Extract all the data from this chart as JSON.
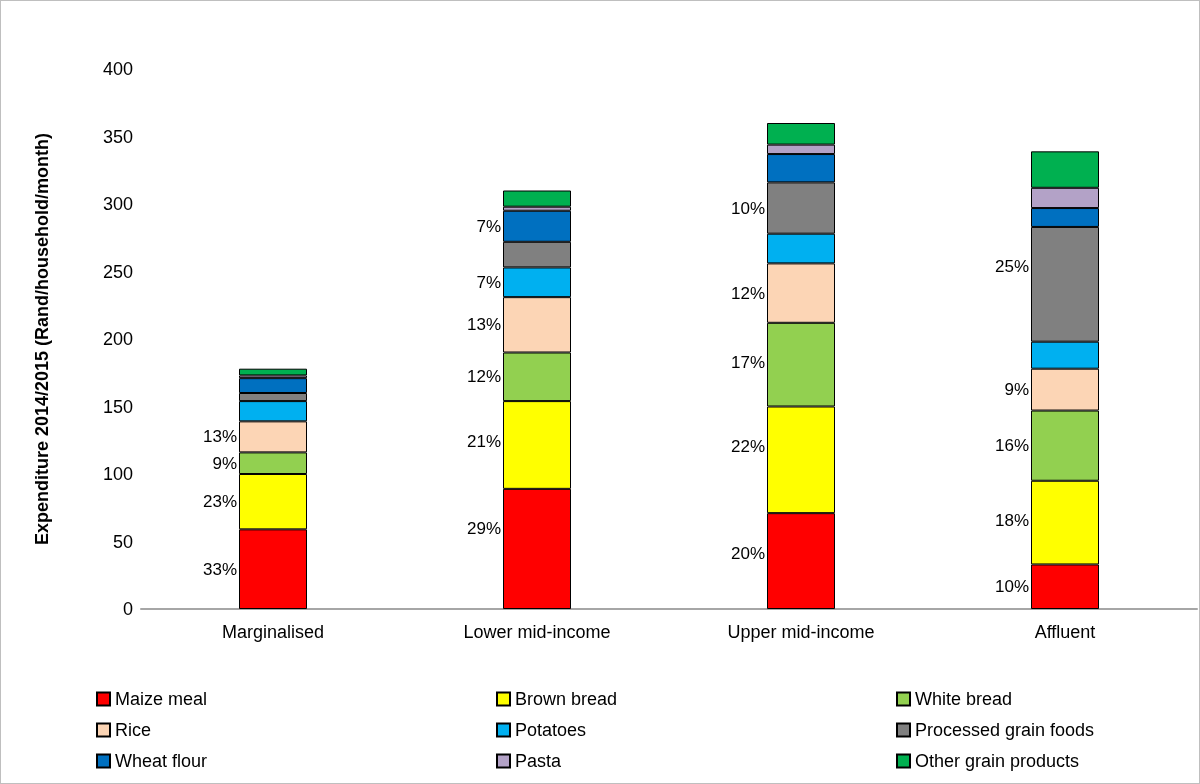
{
  "chart_data": {
    "type": "bar",
    "stacked": true,
    "ylabel": "Expenditure 2014/2015 (Rand/household/month)",
    "categories": [
      "Marginalised",
      "Lower mid-income",
      "Upper mid-income",
      "Affluent"
    ],
    "ylim": [
      0,
      400
    ],
    "yticks": [
      0,
      50,
      100,
      150,
      200,
      250,
      300,
      350,
      400
    ],
    "grid": false,
    "legend": "bottom",
    "series": [
      {
        "name": "Maize meal",
        "color": "#ff0000",
        "values": [
          59,
          89,
          71,
          33
        ]
      },
      {
        "name": "Brown bread",
        "color": "#ffff00",
        "values": [
          41,
          65,
          79,
          62
        ]
      },
      {
        "name": "White bread",
        "color": "#92d050",
        "values": [
          16,
          36,
          62,
          52
        ]
      },
      {
        "name": "Rice",
        "color": "#fcd5b5",
        "values": [
          23,
          41,
          44,
          31
        ]
      },
      {
        "name": "Potatoes",
        "color": "#00b0f0",
        "values": [
          15,
          22,
          22,
          20
        ]
      },
      {
        "name": "Processed grain foods",
        "color": "#808080",
        "values": [
          6,
          19,
          38,
          85
        ]
      },
      {
        "name": "Wheat flour",
        "color": "#0070c0",
        "values": [
          11,
          23,
          21,
          14
        ]
      },
      {
        "name": "Pasta",
        "color": "#b3a2c7",
        "values": [
          2,
          3,
          7,
          15
        ]
      },
      {
        "name": "Other grain products",
        "color": "#00b050",
        "values": [
          5,
          12,
          16,
          27
        ]
      }
    ],
    "annotations": [
      {
        "text": "33%",
        "x": "Marginalised",
        "y": 59
      },
      {
        "text": "23%",
        "x": "Marginalised",
        "y": 100
      },
      {
        "text": "9%",
        "x": "Marginalised",
        "y": 116
      },
      {
        "text": "13%",
        "x": "Marginalised",
        "y": 139
      },
      {
        "text": "29%",
        "x": "Lower mid-income",
        "y": 89
      },
      {
        "text": "21%",
        "x": "Lower mid-income",
        "y": 154
      },
      {
        "text": "12%",
        "x": "Lower mid-income",
        "y": 190
      },
      {
        "text": "13%",
        "x": "Lower mid-income",
        "y": 231
      },
      {
        "text": "7%",
        "x": "Lower mid-income",
        "y": 253
      },
      {
        "text": "7%",
        "x": "Lower mid-income",
        "y": 295
      },
      {
        "text": "20%",
        "x": "Upper mid-income",
        "y": 71
      },
      {
        "text": "22%",
        "x": "Upper mid-income",
        "y": 150
      },
      {
        "text": "17%",
        "x": "Upper mid-income",
        "y": 212
      },
      {
        "text": "12%",
        "x": "Upper mid-income",
        "y": 256
      },
      {
        "text": "10%",
        "x": "Upper mid-income",
        "y": 316
      },
      {
        "text": "10%",
        "x": "Affluent",
        "y": 33
      },
      {
        "text": "18%",
        "x": "Affluent",
        "y": 95
      },
      {
        "text": "16%",
        "x": "Affluent",
        "y": 147
      },
      {
        "text": "9%",
        "x": "Affluent",
        "y": 178
      },
      {
        "text": "25%",
        "x": "Affluent",
        "y": 283
      }
    ]
  }
}
